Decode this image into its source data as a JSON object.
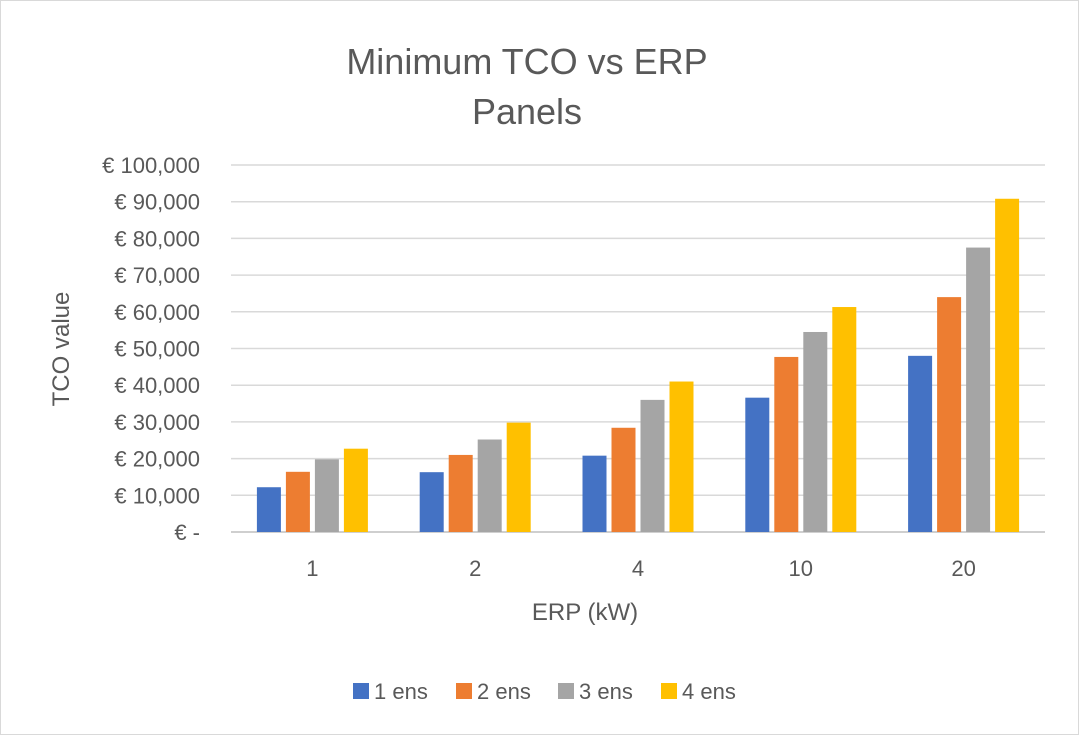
{
  "chart_data": {
    "type": "bar",
    "title": "Minimum TCO vs ERP",
    "subtitle": "Panels",
    "xlabel": "ERP (kW)",
    "ylabel": "TCO value",
    "categories": [
      "1",
      "2",
      "4",
      "10",
      "20"
    ],
    "ylim": [
      0,
      100000
    ],
    "yticks": [
      0,
      10000,
      20000,
      30000,
      40000,
      50000,
      60000,
      70000,
      80000,
      90000,
      100000
    ],
    "ytick_labels": [
      "€ -",
      "€ 10,000",
      "€ 20,000",
      "€ 30,000",
      "€ 40,000",
      "€ 50,000",
      "€ 60,000",
      "€ 70,000",
      "€ 80,000",
      "€ 90,000",
      "€ 100,000"
    ],
    "grid": true,
    "legend_position": "bottom",
    "series": [
      {
        "name": "1 ens",
        "color": "#4472c4",
        "values": [
          12200,
          16300,
          20800,
          36600,
          48000
        ]
      },
      {
        "name": "2 ens",
        "color": "#ed7d31",
        "values": [
          16400,
          21000,
          28400,
          47700,
          64000
        ]
      },
      {
        "name": "3 ens",
        "color": "#a5a5a5",
        "values": [
          19800,
          25200,
          36000,
          54500,
          77500
        ]
      },
      {
        "name": "4 ens",
        "color": "#ffc000",
        "values": [
          22700,
          29800,
          41000,
          61300,
          90800
        ]
      }
    ]
  }
}
